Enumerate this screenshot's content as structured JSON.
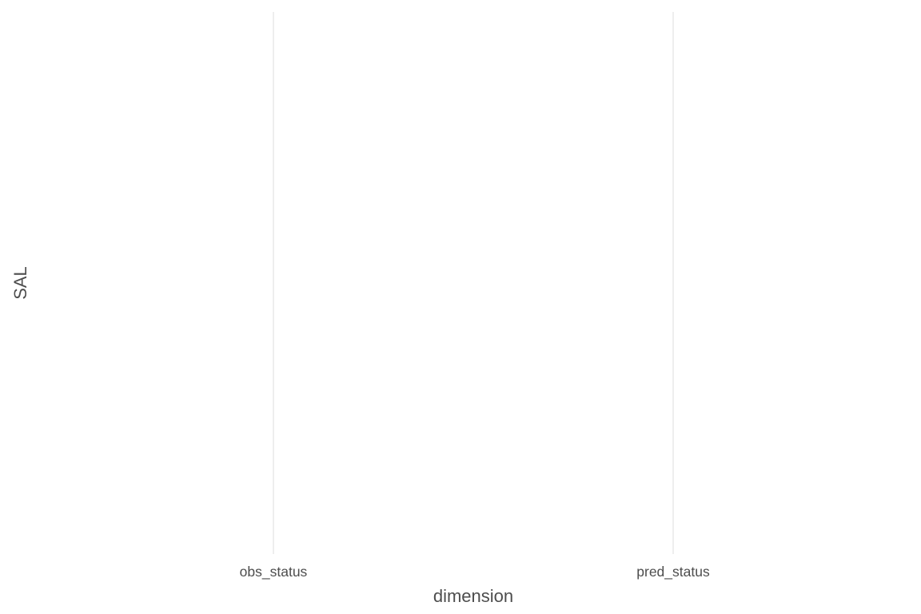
{
  "chart_data": {
    "type": "bar",
    "categories": [
      "obs_status",
      "pred_status"
    ],
    "series": [],
    "xlabel": "dimension",
    "ylabel": "SAL",
    "grid": {
      "vertical_major": true,
      "horizontal": false
    },
    "colors": {
      "background": "#ffffff",
      "grid": "#e3e3e3",
      "text": "#4d4d4d"
    }
  }
}
